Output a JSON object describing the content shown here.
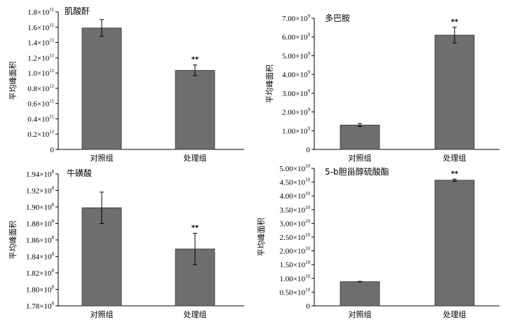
{
  "chart_data": [
    {
      "type": "bar",
      "title": "肌酸酐",
      "ylabel": "平均峰面积",
      "categories": [
        "对照组",
        "处理组"
      ],
      "values": [
        159000000000.0,
        103500000000.0
      ],
      "errors": [
        11000000000.0,
        7000000000.0
      ],
      "significance": [
        "",
        "**"
      ],
      "ylim": [
        0,
        180000000000.0
      ],
      "ticks": [
        {
          "v": 0,
          "m": "0",
          "e": ""
        },
        {
          "v": 20000000000.0,
          "m": "0.2×10",
          "e": "11"
        },
        {
          "v": 40000000000.0,
          "m": "0.4×10",
          "e": "11"
        },
        {
          "v": 60000000000.0,
          "m": "0.6×10",
          "e": "11"
        },
        {
          "v": 80000000000.0,
          "m": "0.8×10",
          "e": "11"
        },
        {
          "v": 100000000000.0,
          "m": "1.0×10",
          "e": "11"
        },
        {
          "v": 120000000000.0,
          "m": "1.2×10",
          "e": "11"
        },
        {
          "v": 140000000000.0,
          "m": "1.4×10",
          "e": "11"
        },
        {
          "v": 160000000000.0,
          "m": "1.6×10",
          "e": "11"
        },
        {
          "v": 180000000000.0,
          "m": "1.8×10",
          "e": "11"
        }
      ],
      "bar_color": "#6e6e6e"
    },
    {
      "type": "bar",
      "title": "多巴胺",
      "ylabel": "平均峰面积",
      "categories": [
        "对照组",
        "处理组"
      ],
      "values": [
        1300000000.0,
        6100000000.0
      ],
      "errors": [
        80000000.0,
        420000000.0
      ],
      "significance": [
        "",
        "**"
      ],
      "ylim": [
        0,
        7000000000.0
      ],
      "ticks": [
        {
          "v": 0,
          "m": "0",
          "e": ""
        },
        {
          "v": 1000000000.0,
          "m": "1.00×10",
          "e": "9"
        },
        {
          "v": 2000000000.0,
          "m": "2.00×10",
          "e": "9"
        },
        {
          "v": 3000000000.0,
          "m": "3.00×10",
          "e": "9"
        },
        {
          "v": 4000000000.0,
          "m": "4.00×10",
          "e": "9"
        },
        {
          "v": 5000000000.0,
          "m": "5.00×10",
          "e": "9"
        },
        {
          "v": 6000000000.0,
          "m": "6.00×10",
          "e": "9"
        },
        {
          "v": 7000000000.0,
          "m": "7.00×10",
          "e": "9"
        }
      ],
      "bar_color": "#6e6e6e"
    },
    {
      "type": "bar",
      "title": "牛磺酸",
      "ylabel": "平均峰面积",
      "categories": [
        "对照组",
        "处理组"
      ],
      "values": [
        189900000.0,
        184900000.0
      ],
      "errors": [
        1900000.0,
        1900000.0
      ],
      "significance": [
        "",
        "**"
      ],
      "ylim": [
        178000000.0,
        194000000.0
      ],
      "ticks": [
        {
          "v": 178000000.0,
          "m": "1.78×10",
          "e": "8"
        },
        {
          "v": 180000000.0,
          "m": "1.80×10",
          "e": "8"
        },
        {
          "v": 182000000.0,
          "m": "1.82×10",
          "e": "8"
        },
        {
          "v": 184000000.0,
          "m": "1.84×10",
          "e": "8"
        },
        {
          "v": 186000000.0,
          "m": "1.86×10",
          "e": "8"
        },
        {
          "v": 188000000.0,
          "m": "1.88×10",
          "e": "8"
        },
        {
          "v": 190000000.0,
          "m": "1.90×10",
          "e": "8"
        },
        {
          "v": 192000000.0,
          "m": "1.92×10",
          "e": "8"
        },
        {
          "v": 194000000.0,
          "m": "1.94×10",
          "e": "8"
        }
      ],
      "bar_color": "#6e6e6e"
    },
    {
      "type": "bar",
      "title": "5-b胆甾醇硫酸酯",
      "ylabel": "平均峰面积",
      "categories": [
        "对照组",
        "处理组"
      ],
      "values": [
        8800000000.0,
        45700000000.0
      ],
      "errors": [
        100000000.0,
        400000000.0
      ],
      "significance": [
        "",
        "**"
      ],
      "ylim": [
        0,
        50000000000.0
      ],
      "ticks": [
        {
          "v": 0,
          "m": "0",
          "e": ""
        },
        {
          "v": 5000000000.0,
          "m": "0.50×10",
          "e": "10"
        },
        {
          "v": 10000000000.0,
          "m": "1.00×10",
          "e": "10"
        },
        {
          "v": 15000000000.0,
          "m": "1.50×10",
          "e": "10"
        },
        {
          "v": 20000000000.0,
          "m": "2.00×10",
          "e": "10"
        },
        {
          "v": 25000000000.0,
          "m": "2.50×10",
          "e": "10"
        },
        {
          "v": 30000000000.0,
          "m": "3.00×10",
          "e": "10"
        },
        {
          "v": 35000000000.0,
          "m": "3.50×10",
          "e": "10"
        },
        {
          "v": 40000000000.0,
          "m": "4.00×10",
          "e": "10"
        },
        {
          "v": 45000000000.0,
          "m": "4.50×10",
          "e": "10"
        },
        {
          "v": 50000000000.0,
          "m": "5.00×10",
          "e": "10"
        }
      ],
      "bar_color": "#6e6e6e"
    }
  ]
}
